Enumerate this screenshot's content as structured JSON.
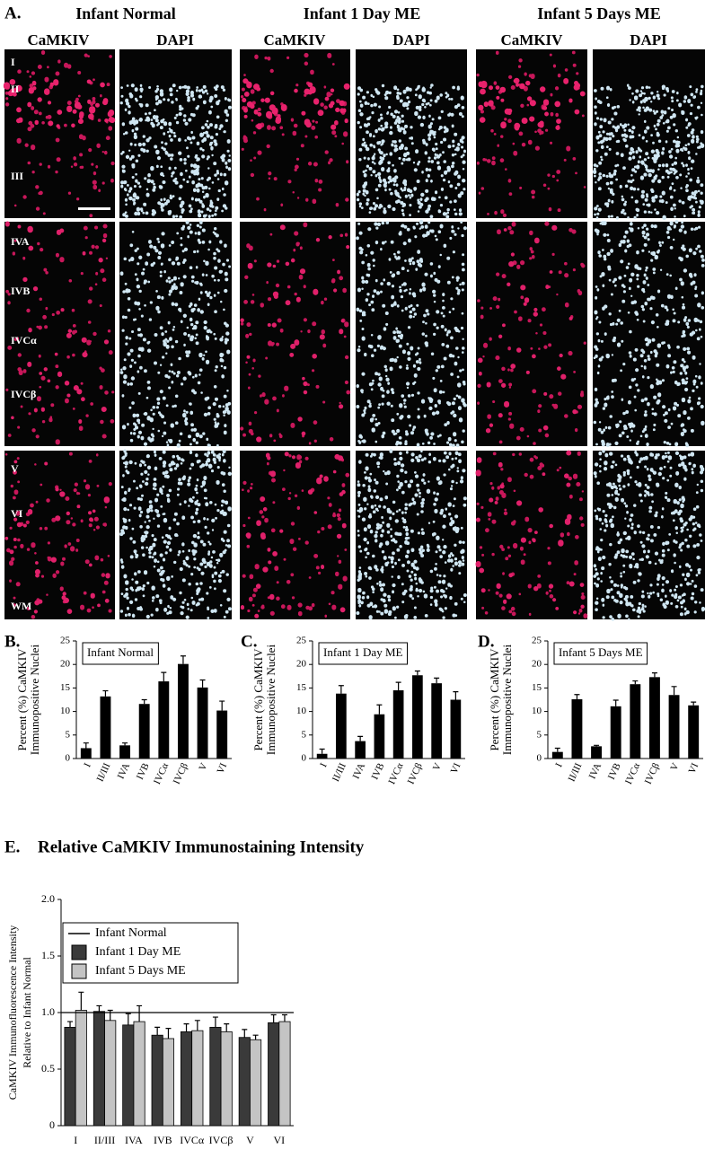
{
  "panel_a": {
    "label": "A.",
    "groups": [
      {
        "title": "Infant Normal",
        "columns": [
          "CaMKIV",
          "DAPI"
        ]
      },
      {
        "title": "Infant 1 Day ME",
        "columns": [
          "CaMKIV",
          "DAPI"
        ]
      },
      {
        "title": "Infant 5 Days ME",
        "columns": [
          "CaMKIV",
          "DAPI"
        ]
      }
    ],
    "layers": [
      "I",
      "II",
      "III",
      "IVA",
      "IVB",
      "IVCα",
      "IVCβ",
      "V",
      "VI",
      "WM"
    ]
  },
  "chart_data": [
    {
      "type": "bar",
      "panel_label": "B.",
      "title": "Infant Normal",
      "ylabel": [
        "Percent (%) CaMKIV",
        "Immunopositive Nuclei"
      ],
      "categories": [
        "I",
        "II/III",
        "IVA",
        "IVB",
        "IVCα",
        "IVCβ",
        "V",
        "VI"
      ],
      "values": [
        2.2,
        13.2,
        2.8,
        11.6,
        16.4,
        20.1,
        15.1,
        10.2
      ],
      "errors": [
        1.1,
        1.2,
        0.5,
        0.9,
        1.9,
        1.7,
        1.6,
        2.0
      ],
      "color": "#000000",
      "ylim": [
        0,
        25
      ],
      "yticks": [
        0,
        5,
        10,
        15,
        20,
        25
      ]
    },
    {
      "type": "bar",
      "panel_label": "C.",
      "title": "Infant 1 Day ME",
      "ylabel": [
        "Percent (%) CaMKIV",
        "Immunopositive Nuclei"
      ],
      "categories": [
        "I",
        "II/III",
        "IVA",
        "IVB",
        "IVCα",
        "IVCβ",
        "V",
        "VI"
      ],
      "values": [
        1.0,
        13.8,
        3.7,
        9.4,
        14.5,
        17.7,
        16.0,
        12.5
      ],
      "errors": [
        1.0,
        1.7,
        1.0,
        2.0,
        1.7,
        0.9,
        1.1,
        1.7
      ],
      "color": "#000000",
      "ylim": [
        0,
        25
      ],
      "yticks": [
        0,
        5,
        10,
        15,
        20,
        25
      ]
    },
    {
      "type": "bar",
      "panel_label": "D.",
      "title": "Infant 5 Days ME",
      "ylabel": [
        "Percent (%) CaMKIV",
        "Immunopositive Nuclei"
      ],
      "categories": [
        "I",
        "II/III",
        "IVA",
        "IVB",
        "IVCα",
        "IVCβ",
        "V",
        "VI"
      ],
      "values": [
        1.4,
        12.6,
        2.6,
        11.1,
        15.8,
        17.3,
        13.5,
        11.3
      ],
      "errors": [
        0.8,
        1.0,
        0.2,
        1.3,
        0.7,
        0.9,
        1.8,
        0.7
      ],
      "color": "#000000",
      "ylim": [
        0,
        25
      ],
      "yticks": [
        0,
        5,
        10,
        15,
        20,
        25
      ]
    },
    {
      "type": "bar",
      "panel_label": "E.",
      "title": "Relative CaMKIV Immunostaining Intensity",
      "ylabel": [
        "CaMKIV Immunofluorescence Intensity",
        "Relative to Infant Normal"
      ],
      "categories": [
        "I",
        "II/III",
        "IVA",
        "IVB",
        "IVCα",
        "IVCβ",
        "V",
        "VI"
      ],
      "reference_line": {
        "name": "Infant Normal",
        "value": 1,
        "color": "#000000"
      },
      "series": [
        {
          "name": "Infant 1 Day ME",
          "color": "#3a3a3a",
          "values": [
            0.87,
            1.01,
            0.89,
            0.8,
            0.83,
            0.87,
            0.78,
            0.91
          ],
          "errors": [
            0.05,
            0.05,
            0.1,
            0.07,
            0.07,
            0.09,
            0.07,
            0.07
          ]
        },
        {
          "name": "Infant 5 Days ME",
          "color": "#c4c4c4",
          "values": [
            1.02,
            0.93,
            0.92,
            0.77,
            0.84,
            0.83,
            0.76,
            0.92
          ],
          "errors": [
            0.16,
            0.09,
            0.14,
            0.09,
            0.09,
            0.07,
            0.04,
            0.06
          ]
        }
      ],
      "ylim": [
        0,
        2
      ],
      "yticks": [
        0,
        0.5,
        {
          "value": 1,
          "label": "1.0"
        },
        1.5,
        {
          "value": 2,
          "label": "2.0"
        }
      ],
      "legend": "upper left"
    }
  ]
}
